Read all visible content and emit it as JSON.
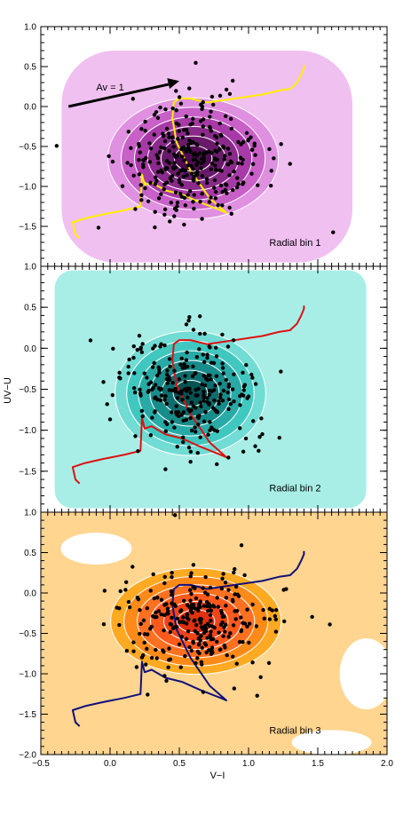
{
  "figure": {
    "xlabel": "V−I",
    "ylabel": "UV−U"
  },
  "chart_data": {
    "type": "scatter",
    "xlim": [
      -0.5,
      2.0
    ],
    "x_ticks": [
      "−0.5",
      "0.0",
      "0.5",
      "1.0",
      "1.5",
      "2.0"
    ],
    "x_tick_values": [
      -0.5,
      0.0,
      0.5,
      1.0,
      1.5,
      2.0
    ],
    "grid": false,
    "annotation": {
      "text": "Av = 1",
      "arrow_from": [
        -0.3,
        0.0
      ],
      "arrow_to": [
        0.5,
        0.32
      ]
    },
    "panels": [
      {
        "label": "Radial bin 1",
        "ylim": [
          -2.0,
          1.0
        ],
        "y_ticks": [
          "1.0",
          "0.5",
          "0.0",
          "−0.5",
          "−1.0",
          "−1.5"
        ],
        "y_tick_values": [
          1.0,
          0.5,
          0.0,
          -0.5,
          -1.0,
          -1.5
        ],
        "density_colors": [
          "#f0c0f0",
          "#e090e0",
          "#c860c8",
          "#a83aa8",
          "#8a2a8a",
          "#6a1a6a",
          "#500a50"
        ],
        "track_color": "#ffee00",
        "centre": [
          0.6,
          -0.65
        ],
        "spread": [
          0.32,
          0.42
        ],
        "n_points": 290
      },
      {
        "label": "Radial bin 2",
        "ylim": [
          -2.0,
          1.0
        ],
        "y_ticks": [
          "1.0",
          "0.5",
          "0.0",
          "−0.5",
          "−1.0",
          "−1.5"
        ],
        "y_tick_values": [
          1.0,
          0.5,
          0.0,
          -0.5,
          -1.0,
          -1.5
        ],
        "density_colors": [
          "#a8eee6",
          "#70dcd4",
          "#40c8c0",
          "#28aaa6",
          "#188c8a",
          "#0e6e6e",
          "#055454"
        ],
        "track_color": "#dd1111",
        "centre": [
          0.58,
          -0.55
        ],
        "spread": [
          0.28,
          0.42
        ],
        "n_points": 260
      },
      {
        "label": "Radial bin 3",
        "ylim": [
          -2.0,
          1.0
        ],
        "y_ticks": [
          "1.0",
          "0.5",
          "0.0",
          "−0.5",
          "−1.0",
          "−1.5",
          "−2.0"
        ],
        "y_tick_values": [
          1.0,
          0.5,
          0.0,
          -0.5,
          -1.0,
          -1.5,
          -2.0
        ],
        "density_colors": [
          "#ffd590",
          "#ffaa22",
          "#ff8a18",
          "#ff7020",
          "#ff5a1c",
          "#f04418",
          "#e03010"
        ],
        "track_color": "#10107a",
        "centre": [
          0.62,
          -0.35
        ],
        "spread": [
          0.32,
          0.36
        ],
        "n_points": 270
      }
    ],
    "evolution_track": {
      "x": [
        -0.22,
        -0.25,
        -0.27,
        -0.18,
        -0.05,
        0.1,
        0.22,
        0.23,
        0.25,
        0.3,
        0.4,
        0.52,
        0.65,
        0.8,
        0.84,
        0.72,
        0.58,
        0.48,
        0.45,
        0.46,
        0.5,
        0.58,
        0.7,
        0.9,
        1.1,
        1.22,
        1.3,
        1.35,
        1.38,
        1.4,
        1.4
      ],
      "y": [
        -1.65,
        -1.6,
        -1.45,
        -1.4,
        -1.35,
        -1.3,
        -1.25,
        -0.85,
        -0.98,
        -0.95,
        -1.05,
        -1.1,
        -1.2,
        -1.3,
        -1.33,
        -1.15,
        -0.8,
        -0.45,
        -0.15,
        0.05,
        0.1,
        0.1,
        0.05,
        0.1,
        0.15,
        0.2,
        0.22,
        0.3,
        0.4,
        0.48,
        0.52
      ]
    }
  }
}
